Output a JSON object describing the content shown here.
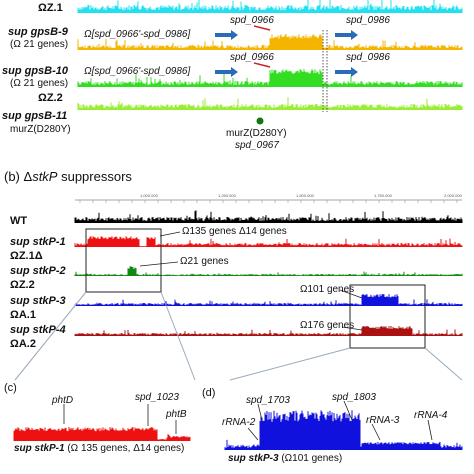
{
  "panel_a": {
    "omega_z1": "ΩZ.1",
    "gpsb9_name": "sup gpsB-9",
    "gpsb9_omega": "(Ω 21 genes)",
    "gpsb10_name": "sup gpsB-10",
    "gpsb10_omega": "(Ω 21 genes)",
    "omega_z2": "ΩZ.2",
    "gpsb11_name": "sup gpsB-11",
    "gpsb11_murz": "murZ(D280Y)",
    "region_label_1": "Ω[spd_0966'-spd_0986]",
    "region_label_2": "Ω[spd_0966'-spd_0986]",
    "gene_0966_1": "spd_0966",
    "gene_0986_1": "spd_0986",
    "gene_0966_2": "spd_0966",
    "gene_0986_2": "spd_0986",
    "murz_point_1": "murZ(D280Y)",
    "murz_point_2": "spd_0967"
  },
  "panel_b": {
    "title_prefix": "(b) Δ",
    "title_gene": "stkP",
    "title_suffix": " suppressors",
    "ticks": [
      "1,000,000",
      "1,250,000",
      "1,500,000",
      "1,750,000",
      "2,000,000"
    ],
    "rows": [
      {
        "name": "WT",
        "omega": ""
      },
      {
        "name": "sup stkP-1",
        "omega": "ΩZ.1Δ"
      },
      {
        "name": "sup stkP-2",
        "omega": "ΩZ.2"
      },
      {
        "name": "sup stkP-3",
        "omega": "ΩA.1"
      },
      {
        "name": "sup stkP-4",
        "omega": "ΩA.2"
      }
    ],
    "annot_1": "Ω135 genes Δ14 genes",
    "annot_2": "Ω21 genes",
    "annot_3": "Ω101 genes",
    "annot_4": "Ω176 genes"
  },
  "panel_c": {
    "label": "(c)",
    "phtD": "phtD",
    "spd_1023": "spd_1023",
    "phtB": "phtB",
    "caption_name": "sup stkP-1",
    "caption_rest": " (Ω 135 genes, Δ14 genes)"
  },
  "panel_d": {
    "label": "(d)",
    "spd_1703": "spd_1703",
    "spd_1803": "spd_1803",
    "rrna2": "rRNA-2",
    "rrna3": "rRNA-3",
    "rrna4": "rRNA-4",
    "caption_name": "sup stkP-3",
    "caption_rest": " (Ω101 genes)"
  },
  "colors": {
    "cyan": "#22e0f0",
    "orange": "#f5b400",
    "green": "#33dd22",
    "lime": "#99ee33",
    "black": "#000000",
    "red": "#ee1111",
    "darkgreen": "#118811",
    "blue": "#1111dd",
    "darkred": "#aa1111",
    "arrow": "#2b6cb8"
  }
}
